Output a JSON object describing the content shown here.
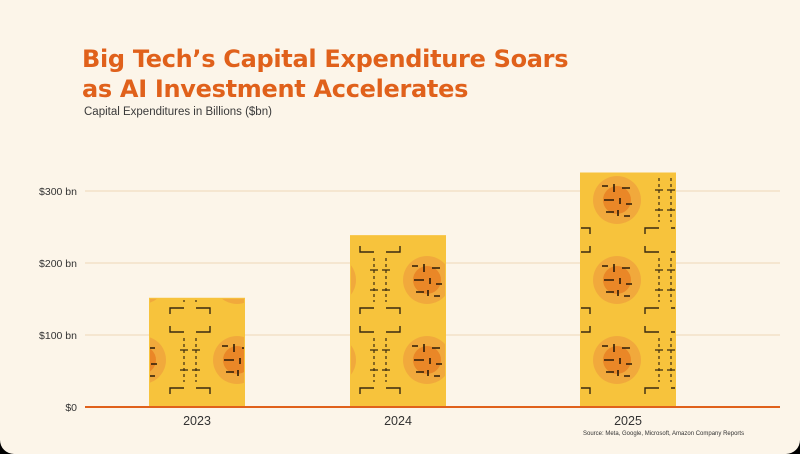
{
  "slide": {
    "title_line1": "Big Tech’s Capital Expenditure Soars",
    "title_line2": "as AI Investment Accelerates",
    "subtitle": "Capital Expenditures in Billions ($bn)",
    "source": "Source: Meta, Google, Microsoft, Amazon Company Reports"
  },
  "chart_data": {
    "type": "bar",
    "title": "Big Tech’s Capital Expenditure Soars as AI Investment Accelerates",
    "subtitle": "Capital Expenditures in Billions ($bn)",
    "categories": [
      "2023",
      "2024",
      "2025"
    ],
    "values": [
      151,
      238,
      325
    ],
    "ylim": [
      0,
      335
    ],
    "yticks": [
      0,
      100,
      200,
      300
    ],
    "ytick_labels": [
      "$0",
      "$100 bn",
      "$200 bn",
      "$300 bn"
    ],
    "grid": true,
    "legend": "none",
    "colors": {
      "bar": "#f7c33c",
      "bar_pattern": "#e87a1e",
      "bar_lines": "#3a2a10",
      "grid": "#eed6b8",
      "baseline": "#e0611b",
      "title": "#e0611b"
    }
  }
}
